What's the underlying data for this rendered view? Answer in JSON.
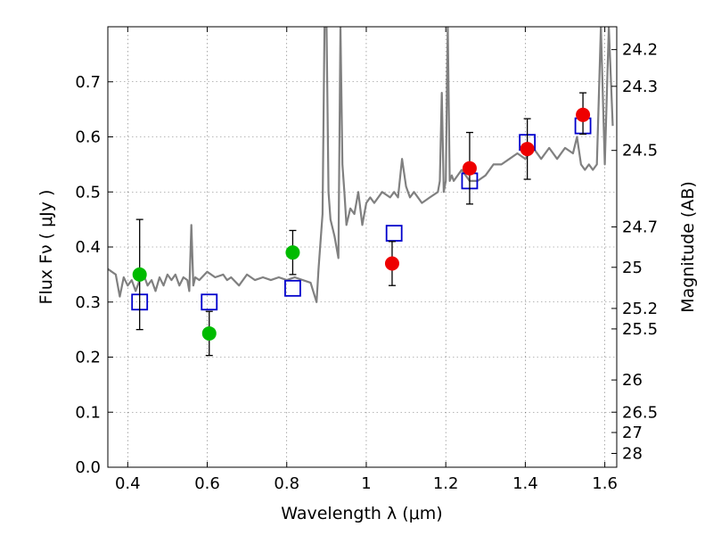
{
  "chart_data": {
    "type": "scatter",
    "title": "",
    "xlabel": "Wavelength  λ (μm)",
    "ylabel": "Flux  Fν  ( μJy )",
    "ylabel_right": "Magnitude (AB)",
    "xlim": [
      0.35,
      1.63
    ],
    "ylim": [
      0.0,
      0.8
    ],
    "grid": true,
    "x_ticks": [
      0.4,
      0.6,
      0.8,
      1.0,
      1.2,
      1.4,
      1.6
    ],
    "x_tick_labels": [
      "0.4",
      "0.6",
      "0.8",
      "1",
      "1.2",
      "1.4",
      "1.6"
    ],
    "y_ticks": [
      0.0,
      0.1,
      0.2,
      0.3,
      0.4,
      0.5,
      0.6,
      0.7
    ],
    "y_tick_labels": [
      "0.0",
      "0.1",
      "0.2",
      "0.3",
      "0.4",
      "0.5",
      "0.6",
      "0.7"
    ],
    "right_ticks": [
      {
        "flux": 0.0251,
        "label": "28"
      },
      {
        "flux": 0.0631,
        "label": "27"
      },
      {
        "flux": 0.1,
        "label": "26.5"
      },
      {
        "flux": 0.1585,
        "label": "26"
      },
      {
        "flux": 0.2512,
        "label": "25.5"
      },
      {
        "flux": 0.2884,
        "label": "25.2"
      },
      {
        "flux": 0.3631,
        "label": "25"
      },
      {
        "flux": 0.4365,
        "label": "24.7"
      },
      {
        "flux": 0.5754,
        "label": "24.5"
      },
      {
        "flux": 0.6918,
        "label": "24.3"
      },
      {
        "flux": 0.7585,
        "label": "24.2"
      }
    ],
    "series": [
      {
        "kind": "line",
        "color": "#808080",
        "x": [
          0.35,
          0.36,
          0.37,
          0.38,
          0.39,
          0.4,
          0.41,
          0.42,
          0.43,
          0.44,
          0.45,
          0.46,
          0.47,
          0.48,
          0.49,
          0.5,
          0.51,
          0.52,
          0.53,
          0.54,
          0.55,
          0.555,
          0.56,
          0.565,
          0.57,
          0.58,
          0.6,
          0.62,
          0.64,
          0.65,
          0.66,
          0.68,
          0.7,
          0.72,
          0.74,
          0.76,
          0.78,
          0.8,
          0.82,
          0.84,
          0.86,
          0.875,
          0.88,
          0.89,
          0.895,
          0.9,
          0.905,
          0.91,
          0.92,
          0.93,
          0.935,
          0.94,
          0.945,
          0.95,
          0.96,
          0.97,
          0.98,
          0.99,
          1.0,
          1.01,
          1.02,
          1.04,
          1.06,
          1.07,
          1.08,
          1.09,
          1.1,
          1.11,
          1.12,
          1.14,
          1.16,
          1.18,
          1.185,
          1.19,
          1.195,
          1.2,
          1.205,
          1.21,
          1.215,
          1.22,
          1.24,
          1.26,
          1.28,
          1.3,
          1.32,
          1.34,
          1.36,
          1.38,
          1.4,
          1.42,
          1.44,
          1.46,
          1.48,
          1.5,
          1.52,
          1.53,
          1.54,
          1.55,
          1.56,
          1.57,
          1.58,
          1.59,
          1.6,
          1.61,
          1.62
        ],
        "y": [
          0.36,
          0.355,
          0.35,
          0.31,
          0.345,
          0.33,
          0.34,
          0.32,
          0.34,
          0.35,
          0.33,
          0.34,
          0.32,
          0.345,
          0.33,
          0.35,
          0.34,
          0.35,
          0.33,
          0.345,
          0.34,
          0.32,
          0.44,
          0.33,
          0.345,
          0.34,
          0.355,
          0.345,
          0.35,
          0.34,
          0.345,
          0.33,
          0.35,
          0.34,
          0.345,
          0.34,
          0.345,
          0.34,
          0.345,
          0.34,
          0.335,
          0.3,
          0.36,
          0.46,
          0.8,
          0.8,
          0.5,
          0.45,
          0.42,
          0.38,
          0.8,
          0.55,
          0.5,
          0.44,
          0.47,
          0.46,
          0.5,
          0.44,
          0.48,
          0.49,
          0.48,
          0.5,
          0.49,
          0.5,
          0.49,
          0.56,
          0.51,
          0.49,
          0.5,
          0.48,
          0.49,
          0.5,
          0.52,
          0.68,
          0.5,
          0.52,
          0.8,
          0.52,
          0.53,
          0.52,
          0.54,
          0.52,
          0.52,
          0.53,
          0.55,
          0.55,
          0.56,
          0.57,
          0.56,
          0.58,
          0.56,
          0.58,
          0.56,
          0.58,
          0.57,
          0.6,
          0.55,
          0.54,
          0.55,
          0.54,
          0.55,
          0.8,
          0.55,
          0.8,
          0.62
        ]
      },
      {
        "kind": "open-square",
        "color": "#0000cc",
        "x": [
          0.43,
          0.605,
          0.815,
          1.07,
          1.26,
          1.405,
          1.545
        ],
        "y": [
          0.3,
          0.3,
          0.325,
          0.425,
          0.52,
          0.59,
          0.62
        ]
      },
      {
        "kind": "filled-circle",
        "color": "#00bb00",
        "x": [
          0.43,
          0.605,
          0.815
        ],
        "y": [
          0.35,
          0.243,
          0.39
        ],
        "err_low": [
          0.1,
          0.04,
          0.04
        ],
        "err_high": [
          0.1,
          0.04,
          0.04
        ]
      },
      {
        "kind": "filled-circle",
        "color": "#ee0000",
        "x": [
          1.065,
          1.26,
          1.405,
          1.545
        ],
        "y": [
          0.37,
          0.543,
          0.578,
          0.64
        ],
        "err_low": [
          0.04,
          0.065,
          0.055,
          0.035
        ],
        "err_high": [
          0.04,
          0.065,
          0.055,
          0.04
        ]
      }
    ]
  }
}
